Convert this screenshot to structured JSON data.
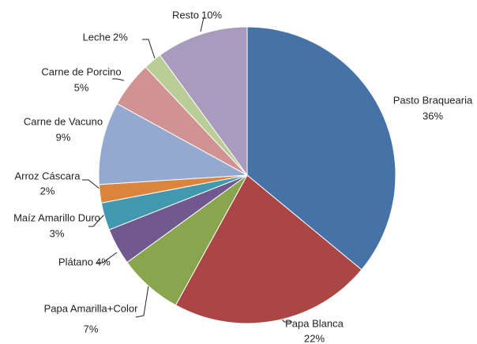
{
  "chart_data": {
    "type": "pie",
    "categories": [
      "Pasto Braquearia",
      "Papa Blanca",
      "Papa Amarilla+Color",
      "Plátano",
      "Maíz Amarillo Duro",
      "Arroz Cáscara",
      "Carne de Vacuno",
      "Carne de Porcino",
      "Leche",
      "Resto"
    ],
    "values": [
      36,
      22,
      7,
      4,
      3,
      2,
      9,
      5,
      2,
      10
    ],
    "value_labels": [
      "36%",
      "22%",
      "7%",
      "4%",
      "3%",
      "2%",
      "9%",
      "5%",
      "2%",
      "10%"
    ],
    "colors": [
      "#4572A7",
      "#AA4643",
      "#89A54E",
      "#71588F",
      "#4198AF",
      "#DB843D",
      "#93A9CF",
      "#D19392",
      "#B9CD96",
      "#A99BBD"
    ]
  }
}
